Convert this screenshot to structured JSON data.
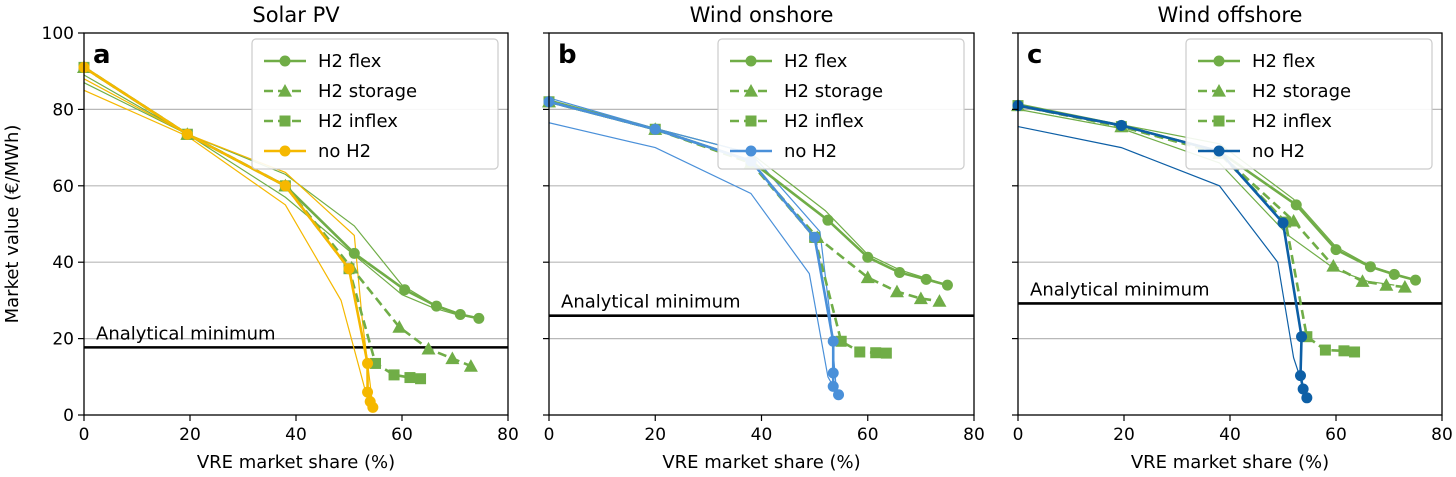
{
  "figure": {
    "ylabel": "Market value (€/MWh)"
  },
  "colors": {
    "green": "#70ad47",
    "yellow": "#f5b800",
    "lightblue": "#4a90d9",
    "darkblue": "#0d5fa6",
    "gridline": "#b8b8b8",
    "hline": "#000000"
  },
  "chart_data": [
    {
      "type": "line",
      "title": "Solar PV",
      "panel_letter": "a",
      "xlabel": "VRE market share (%)",
      "ylabel": "Market value (€/MWh)",
      "xlim": [
        0,
        80
      ],
      "ylim": [
        0,
        100
      ],
      "xticks": [
        "0",
        "20",
        "40",
        "60",
        "80"
      ],
      "yticks": [
        "0",
        "20",
        "40",
        "60",
        "80",
        "100"
      ],
      "grid": "horizontal",
      "legend_position": "top-right",
      "annotation": {
        "text": "Analytical minimum",
        "y": 17.7
      },
      "series": [
        {
          "name": "H2 flex",
          "color": "green",
          "marker": "circle",
          "dash": "solid",
          "points": [
            [
              0,
              91
            ],
            [
              19.5,
              73.5
            ],
            [
              38,
              60
            ],
            [
              51,
              42.3
            ],
            [
              60.5,
              32.8
            ],
            [
              66.5,
              28.5
            ],
            [
              71,
              26.3
            ],
            [
              74.5,
              25.3
            ]
          ]
        },
        {
          "name": "H2 storage",
          "color": "green",
          "marker": "triangle",
          "dash": "dashed",
          "points": [
            [
              0,
              91
            ],
            [
              19.5,
              73.5
            ],
            [
              38,
              60
            ],
            [
              50.5,
              38.5
            ],
            [
              59.5,
              23
            ],
            [
              65,
              17.3
            ],
            [
              69.5,
              14.8
            ],
            [
              73,
              12.8
            ]
          ]
        },
        {
          "name": "H2 inflex",
          "color": "green",
          "marker": "square",
          "dash": "dashed",
          "points": [
            [
              0,
              91
            ],
            [
              19.5,
              73.5
            ],
            [
              38,
              60
            ],
            [
              50,
              38.3
            ],
            [
              55,
              13.5
            ],
            [
              58.5,
              10.5
            ],
            [
              61.5,
              9.8
            ],
            [
              63.5,
              9.5
            ]
          ]
        },
        {
          "name": "no H2",
          "color": "yellow",
          "marker": "circle",
          "dash": "solid",
          "points": [
            [
              0,
              91
            ],
            [
              19.5,
              73.5
            ],
            [
              38,
              60
            ],
            [
              50,
              38.3
            ],
            [
              53.5,
              13.5
            ],
            [
              53.5,
              6
            ],
            [
              54,
              3.5
            ],
            [
              54.5,
              2
            ]
          ]
        }
      ],
      "thin_lines": [
        {
          "color": "green",
          "points": [
            [
              0,
              89
            ],
            [
              19.5,
              73.5
            ],
            [
              38,
              63
            ],
            [
              51,
              49.5
            ],
            [
              60,
              34
            ],
            [
              66,
              29
            ],
            [
              71,
              26.5
            ],
            [
              74.5,
              25.3
            ]
          ]
        },
        {
          "color": "green",
          "points": [
            [
              0,
              87
            ],
            [
              19.5,
              73.5
            ],
            [
              38,
              57
            ],
            [
              50,
              43
            ],
            [
              60,
              31.5
            ],
            [
              66,
              28
            ],
            [
              71,
              26
            ]
          ]
        },
        {
          "color": "yellow",
          "points": [
            [
              0,
              88
            ],
            [
              19.5,
              73.5
            ],
            [
              38,
              63.5
            ],
            [
              51,
              47
            ],
            [
              52.5,
              25
            ],
            [
              54,
              8
            ],
            [
              54.5,
              2
            ]
          ]
        },
        {
          "color": "yellow",
          "points": [
            [
              0,
              85
            ],
            [
              19.5,
              73
            ],
            [
              38,
              55
            ],
            [
              48.5,
              30
            ],
            [
              52,
              12
            ],
            [
              54,
              1.5
            ]
          ]
        }
      ]
    },
    {
      "type": "line",
      "title": "Wind onshore",
      "panel_letter": "b",
      "xlabel": "VRE market share (%)",
      "xlim": [
        0,
        80
      ],
      "ylim": [
        0,
        100
      ],
      "xticks": [
        "0",
        "20",
        "40",
        "60",
        "80"
      ],
      "grid": "horizontal",
      "legend_position": "top-right",
      "annotation": {
        "text": "Analytical minimum",
        "y": 26
      },
      "series": [
        {
          "name": "H2 flex",
          "color": "green",
          "marker": "circle",
          "dash": "solid",
          "points": [
            [
              0,
              82
            ],
            [
              20,
              74.8
            ],
            [
              38,
              66.5
            ],
            [
              52.5,
              51
            ],
            [
              60,
              41.3
            ],
            [
              66,
              37.3
            ],
            [
              71,
              35.5
            ],
            [
              75,
              34
            ]
          ]
        },
        {
          "name": "H2 storage",
          "color": "green",
          "marker": "triangle",
          "dash": "dashed",
          "points": [
            [
              0,
              82
            ],
            [
              20,
              74.8
            ],
            [
              38,
              66
            ],
            [
              50.5,
              46.5
            ],
            [
              60,
              36
            ],
            [
              65.5,
              32.3
            ],
            [
              70,
              30.5
            ],
            [
              73.5,
              29.8
            ]
          ]
        },
        {
          "name": "H2 inflex",
          "color": "green",
          "marker": "square",
          "dash": "dashed",
          "points": [
            [
              0,
              82
            ],
            [
              20,
              74.8
            ],
            [
              38,
              66
            ],
            [
              50,
              46.5
            ],
            [
              55,
              19.3
            ],
            [
              58.5,
              16.5
            ],
            [
              61.5,
              16.3
            ],
            [
              63.5,
              16.2
            ]
          ]
        },
        {
          "name": "no H2",
          "color": "lightblue",
          "marker": "circle",
          "dash": "solid",
          "points": [
            [
              0,
              82
            ],
            [
              20,
              74.8
            ],
            [
              38,
              66.5
            ],
            [
              50,
              46.5
            ],
            [
              53.5,
              19.3
            ],
            [
              53.5,
              11
            ],
            [
              53.5,
              7.5
            ],
            [
              54.5,
              5.3
            ]
          ]
        }
      ],
      "thin_lines": [
        {
          "color": "green",
          "points": [
            [
              0,
              82.5
            ],
            [
              20,
              75
            ],
            [
              38,
              68.5
            ],
            [
              52,
              53.5
            ],
            [
              60,
              42
            ],
            [
              66,
              38
            ],
            [
              71,
              35.8
            ],
            [
              75,
              34
            ]
          ]
        },
        {
          "color": "lightblue",
          "points": [
            [
              0,
              83
            ],
            [
              20,
              75
            ],
            [
              38,
              68.5
            ],
            [
              51,
              48
            ],
            [
              53,
              25
            ],
            [
              54,
              8
            ],
            [
              54.5,
              5
            ]
          ]
        },
        {
          "color": "lightblue",
          "points": [
            [
              0,
              76.5
            ],
            [
              20,
              70
            ],
            [
              38,
              58
            ],
            [
              49,
              37
            ],
            [
              52.5,
              10
            ],
            [
              54.5,
              5
            ]
          ]
        }
      ]
    },
    {
      "type": "line",
      "title": "Wind offshore",
      "panel_letter": "c",
      "xlabel": "VRE market share (%)",
      "xlim": [
        0,
        80
      ],
      "ylim": [
        0,
        100
      ],
      "xticks": [
        "0",
        "20",
        "40",
        "60",
        "80"
      ],
      "grid": "horizontal",
      "legend_position": "top-right",
      "annotation": {
        "text": "Analytical minimum",
        "y": 29.2
      },
      "series": [
        {
          "name": "H2 flex",
          "color": "green",
          "marker": "circle",
          "dash": "solid",
          "points": [
            [
              0,
              81
            ],
            [
              19.5,
              75.8
            ],
            [
              38,
              69
            ],
            [
              52.5,
              55
            ],
            [
              60,
              43.3
            ],
            [
              66.5,
              38.8
            ],
            [
              71,
              36.8
            ],
            [
              75,
              35.3
            ]
          ]
        },
        {
          "name": "H2 storage",
          "color": "green",
          "marker": "triangle",
          "dash": "dashed",
          "points": [
            [
              0,
              81
            ],
            [
              19.5,
              75.5
            ],
            [
              38,
              68.5
            ],
            [
              52,
              50.8
            ],
            [
              59.5,
              39
            ],
            [
              65,
              35
            ],
            [
              69.5,
              34
            ],
            [
              73,
              33.5
            ]
          ]
        },
        {
          "name": "H2 inflex",
          "color": "green",
          "marker": "square",
          "dash": "dashed",
          "points": [
            [
              0,
              81
            ],
            [
              19.5,
              75.5
            ],
            [
              38,
              68.5
            ],
            [
              50.5,
              50.5
            ],
            [
              54.5,
              20.5
            ],
            [
              58,
              17
            ],
            [
              61.5,
              16.8
            ],
            [
              63.5,
              16.5
            ]
          ]
        },
        {
          "name": "no H2",
          "color": "darkblue",
          "marker": "circle",
          "dash": "solid",
          "points": [
            [
              0,
              81
            ],
            [
              19.5,
              75.8
            ],
            [
              38,
              69
            ],
            [
              50,
              50.3
            ],
            [
              53.5,
              20.5
            ],
            [
              53.3,
              10.3
            ],
            [
              53.8,
              6.8
            ],
            [
              54.5,
              4.5
            ]
          ]
        }
      ],
      "thin_lines": [
        {
          "color": "green",
          "points": [
            [
              0,
              81.5
            ],
            [
              19.5,
              76
            ],
            [
              38,
              71
            ],
            [
              52,
              56.5
            ],
            [
              60,
              44
            ],
            [
              66.5,
              39
            ],
            [
              71,
              37
            ],
            [
              75,
              35.3
            ]
          ]
        },
        {
          "color": "green",
          "points": [
            [
              0,
              80
            ],
            [
              19.5,
              75
            ],
            [
              38,
              66
            ],
            [
              51,
              47
            ],
            [
              60,
              38
            ],
            [
              66,
              35
            ],
            [
              71,
              34
            ]
          ]
        },
        {
          "color": "darkblue",
          "points": [
            [
              0,
              75.5
            ],
            [
              19.5,
              70
            ],
            [
              38,
              60
            ],
            [
              49,
              40
            ],
            [
              52,
              15
            ],
            [
              54.5,
              4.5
            ]
          ]
        }
      ]
    }
  ]
}
